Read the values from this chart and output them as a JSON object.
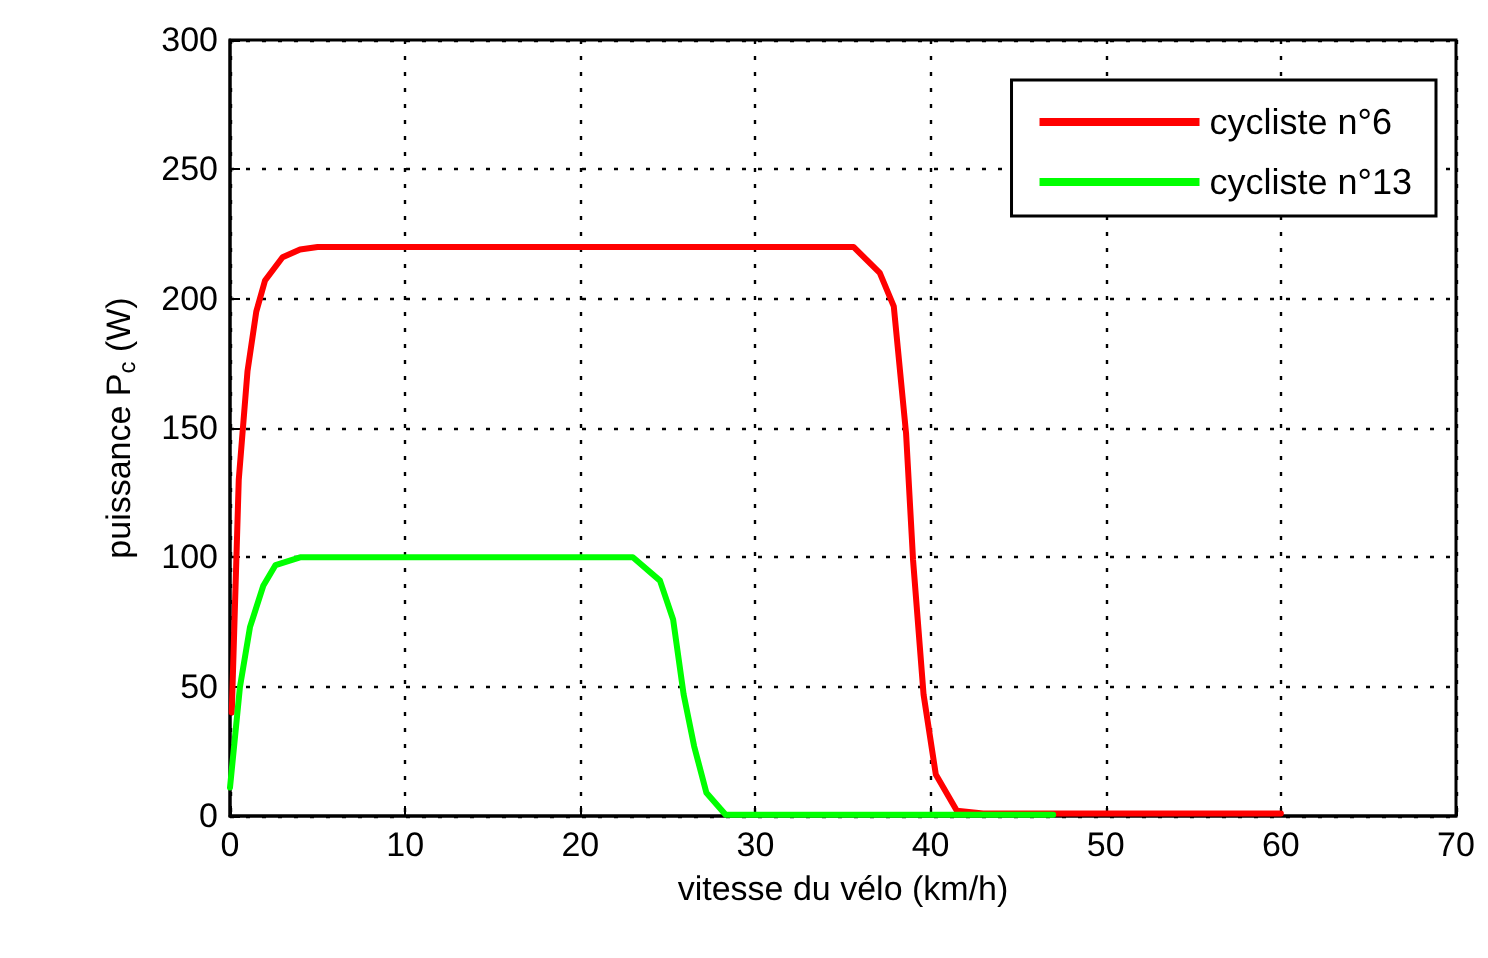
{
  "chart_data": {
    "type": "line",
    "xlabel": "vitesse du vélo (km/h)",
    "ylabel": "puissance P$_{c}$ (W)",
    "xlim": [
      0,
      70
    ],
    "xticks": [
      0,
      10,
      20,
      30,
      40,
      50,
      60,
      70
    ],
    "ylim": [
      0,
      300
    ],
    "yticks": [
      0,
      50,
      100,
      150,
      200,
      250,
      300
    ],
    "grid": true,
    "legend": "top right",
    "marker": "none",
    "line_style": "solid",
    "series": [
      {
        "name": "cycliste n°6",
        "color": "#ff0000",
        "x": [
          0.1,
          0.5,
          1,
          1.5,
          2,
          3,
          4,
          5,
          35.6,
          37.1,
          37.9,
          38.6,
          39.0,
          39.6,
          40.3,
          41.5,
          43,
          60
        ],
        "values": [
          40,
          130,
          172,
          195,
          207,
          216,
          219,
          220,
          220,
          210,
          197,
          148,
          99,
          47,
          16,
          2,
          1,
          1
        ]
      },
      {
        "name": "cycliste n°13",
        "color": "#00ff00",
        "x": [
          0,
          0.57,
          1.14,
          1.9,
          2.6,
          4,
          23.0,
          24.55,
          25.3,
          25.9,
          26.5,
          27.2,
          28.3,
          47
        ],
        "values": [
          11,
          50,
          73,
          89,
          97,
          100,
          100,
          91,
          76,
          47,
          27,
          9,
          0.5,
          0.5
        ]
      }
    ]
  }
}
